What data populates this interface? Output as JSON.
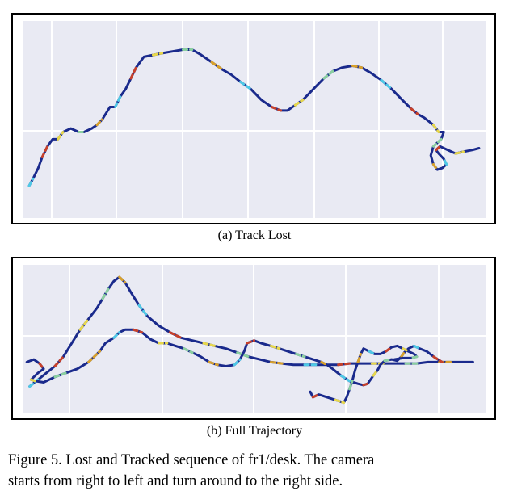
{
  "figure": {
    "panels": [
      {
        "id": "a",
        "label": "(a) Track Lost"
      },
      {
        "id": "b",
        "label": "(b) Full Trajectory"
      }
    ],
    "caption_line1": "Figure 5. Lost and Tracked sequence of fr1/desk.  The camera",
    "caption_line2": "starts from right to left and turn around to the right side."
  },
  "colors": {
    "plot_bg": "#e9eaf3",
    "grid": "#ffffff",
    "trajectory_tracked": "#1a2a8c",
    "trajectory_lost_palette": [
      "#4ec9e6",
      "#e8d84a",
      "#d9a12a",
      "#c8412a",
      "#8bd0a0"
    ]
  },
  "chart_data": [
    {
      "type": "line",
      "panel": "a",
      "series": [
        {
          "points": [
            [
              0,
              18
            ],
            [
              3,
              22
            ],
            [
              7,
              28
            ],
            [
              10,
              34
            ],
            [
              14,
              40
            ],
            [
              18,
              44
            ],
            [
              22,
              44
            ],
            [
              26,
              48
            ],
            [
              32,
              50
            ],
            [
              38,
              48
            ],
            [
              42,
              48
            ],
            [
              48,
              50
            ],
            [
              52,
              52
            ],
            [
              56,
              55
            ],
            [
              62,
              62
            ],
            [
              66,
              62
            ],
            [
              70,
              68
            ],
            [
              74,
              72
            ],
            [
              78,
              78
            ],
            [
              82,
              84
            ],
            [
              88,
              90
            ],
            [
              95,
              91
            ],
            [
              102,
              92
            ],
            [
              110,
              93
            ],
            [
              118,
              94
            ],
            [
              125,
              94
            ],
            [
              132,
              91
            ],
            [
              140,
              87
            ],
            [
              148,
              83
            ],
            [
              155,
              80
            ],
            [
              162,
              76
            ],
            [
              170,
              72
            ],
            [
              178,
              66
            ],
            [
              186,
              62
            ],
            [
              193,
              60
            ],
            [
              198,
              60
            ],
            [
              204,
              63
            ],
            [
              210,
              66
            ],
            [
              218,
              72
            ],
            [
              226,
              78
            ],
            [
              233,
              82
            ],
            [
              240,
              84
            ],
            [
              248,
              85
            ],
            [
              255,
              84
            ],
            [
              262,
              81
            ],
            [
              270,
              77
            ],
            [
              278,
              72
            ],
            [
              286,
              66
            ],
            [
              293,
              61
            ],
            [
              298,
              58
            ],
            [
              303,
              56
            ],
            [
              310,
              52
            ],
            [
              314,
              48
            ],
            [
              318,
              48
            ],
            [
              316,
              44
            ],
            [
              310,
              40
            ],
            [
              308,
              35
            ],
            [
              310,
              30
            ],
            [
              313,
              27
            ],
            [
              317,
              28
            ],
            [
              320,
              30
            ],
            [
              318,
              33
            ],
            [
              314,
              36
            ],
            [
              312,
              38
            ],
            [
              315,
              40
            ],
            [
              321,
              38
            ],
            [
              327,
              36
            ],
            [
              333,
              37
            ],
            [
              340,
              38
            ],
            [
              345,
              39
            ]
          ]
        }
      ]
    },
    {
      "type": "line",
      "panel": "b",
      "series": [
        {
          "points": [
            [
              0,
              20
            ],
            [
              6,
              25
            ],
            [
              12,
              30
            ],
            [
              18,
              35
            ],
            [
              24,
              42
            ],
            [
              30,
              52
            ],
            [
              36,
              62
            ],
            [
              42,
              70
            ],
            [
              48,
              78
            ],
            [
              52,
              85
            ],
            [
              56,
              92
            ],
            [
              60,
              98
            ],
            [
              64,
              101
            ],
            [
              68,
              97
            ],
            [
              72,
              90
            ],
            [
              78,
              80
            ],
            [
              84,
              72
            ],
            [
              92,
              65
            ],
            [
              100,
              60
            ],
            [
              108,
              56
            ],
            [
              116,
              54
            ],
            [
              124,
              52
            ],
            [
              132,
              50
            ],
            [
              140,
              48
            ],
            [
              148,
              45
            ],
            [
              156,
              42
            ],
            [
              164,
              40
            ],
            [
              172,
              38
            ],
            [
              180,
              37
            ],
            [
              188,
              36
            ],
            [
              196,
              36
            ],
            [
              204,
              36
            ],
            [
              212,
              36
            ],
            [
              220,
              36
            ],
            [
              228,
              37
            ],
            [
              236,
              37
            ],
            [
              244,
              37
            ],
            [
              252,
              37
            ],
            [
              260,
              37
            ],
            [
              268,
              37
            ],
            [
              276,
              37
            ],
            [
              284,
              38
            ],
            [
              292,
              38
            ],
            [
              300,
              38
            ],
            [
              308,
              38
            ],
            [
              316,
              38
            ]
          ]
        },
        {
          "points": [
            [
              -2,
              38
            ],
            [
              3,
              40
            ],
            [
              7,
              37
            ],
            [
              10,
              33
            ],
            [
              6,
              30
            ],
            [
              1,
              25
            ],
            [
              4,
              24
            ],
            [
              10,
              23
            ],
            [
              18,
              27
            ],
            [
              26,
              30
            ],
            [
              34,
              33
            ],
            [
              42,
              38
            ],
            [
              50,
              46
            ],
            [
              54,
              52
            ],
            [
              60,
              56
            ],
            [
              64,
              60
            ],
            [
              68,
              62
            ],
            [
              74,
              62
            ],
            [
              80,
              60
            ],
            [
              86,
              55
            ],
            [
              92,
              52
            ],
            [
              98,
              52
            ],
            [
              104,
              50
            ],
            [
              110,
              48
            ],
            [
              116,
              45
            ],
            [
              122,
              42
            ],
            [
              128,
              38
            ],
            [
              134,
              36
            ],
            [
              140,
              35
            ],
            [
              146,
              36
            ],
            [
              150,
              40
            ],
            [
              153,
              46
            ],
            [
              155,
              52
            ],
            [
              160,
              54
            ],
            [
              165,
              52
            ],
            [
              172,
              50
            ],
            [
              178,
              48
            ],
            [
              184,
              46
            ],
            [
              190,
              44
            ],
            [
              196,
              42
            ],
            [
              202,
              40
            ],
            [
              208,
              38
            ],
            [
              212,
              36
            ],
            [
              216,
              33
            ],
            [
              222,
              28
            ],
            [
              228,
              24
            ],
            [
              234,
              22
            ],
            [
              238,
              21
            ],
            [
              241,
              22
            ],
            [
              243,
              25
            ],
            [
              245,
              28
            ],
            [
              248,
              32
            ],
            [
              250,
              36
            ],
            [
              253,
              39
            ],
            [
              258,
              40
            ],
            [
              262,
              39
            ],
            [
              265,
              42
            ],
            [
              267,
              45
            ],
            [
              270,
              48
            ],
            [
              274,
              50
            ],
            [
              278,
              48
            ],
            [
              283,
              46
            ],
            [
              288,
              42
            ],
            [
              294,
              38
            ]
          ]
        },
        {
          "points": [
            [
              200,
              16
            ],
            [
              202,
              12
            ],
            [
              206,
              14
            ],
            [
              212,
              12
            ],
            [
              218,
              10
            ],
            [
              224,
              8
            ],
            [
              226,
              12
            ],
            [
              228,
              18
            ],
            [
              230,
              24
            ],
            [
              232,
              32
            ],
            [
              234,
              38
            ],
            [
              236,
              44
            ],
            [
              238,
              48
            ],
            [
              242,
              46
            ],
            [
              246,
              44
            ],
            [
              250,
              44
            ],
            [
              254,
              46
            ],
            [
              258,
              49
            ],
            [
              262,
              50
            ],
            [
              266,
              48
            ],
            [
              270,
              46
            ],
            [
              274,
              44
            ],
            [
              276,
              42
            ],
            [
              272,
              41
            ],
            [
              266,
              41
            ],
            [
              260,
              40
            ]
          ]
        }
      ]
    }
  ]
}
